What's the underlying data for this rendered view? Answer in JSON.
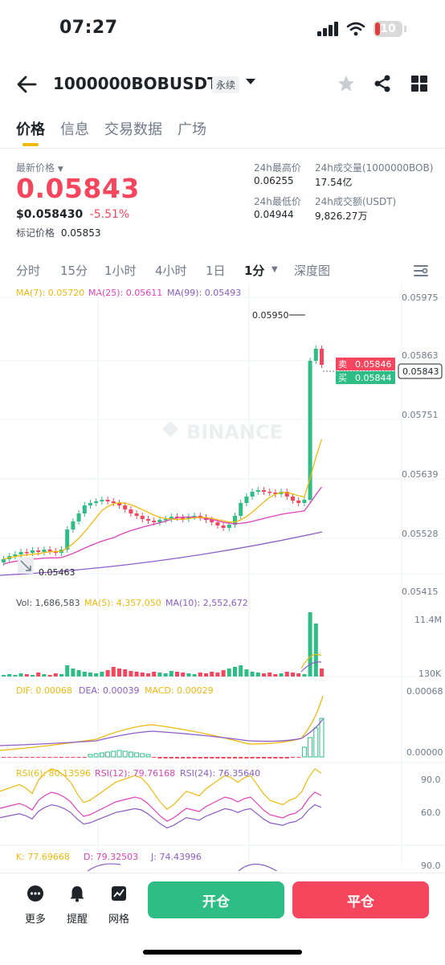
{
  "status": {
    "time": "07:27",
    "battery": "10"
  },
  "header": {
    "symbol": "1000000BOBUSDT",
    "badge": "永续"
  },
  "tabs": [
    "价格",
    "信息",
    "交易数据",
    "广场"
  ],
  "price": {
    "latest_label": "最新价格",
    "last": "0.05843",
    "usd": "$0.058430",
    "change": "-5.51%",
    "mark_label": "标记价格",
    "mark": "0.05853"
  },
  "stats": {
    "high_label": "24h最高价",
    "high": "0.06255",
    "low_label": "24h最低价",
    "low": "0.04944",
    "vol_label": "24h成交量(1000000BOB)",
    "vol": "17.54亿",
    "amount_label": "24h成交额(USDT)",
    "amount": "9,826.27万"
  },
  "intervals": [
    "分时",
    "15分",
    "1小时",
    "4小时",
    "1日",
    "1分",
    "深度图"
  ],
  "chart": {
    "ma7": "MA(7): 0.05720",
    "ma25": "MA(25): 0.05611",
    "ma99": "MA(99): 0.05493",
    "y_ticks": [
      "0.05975",
      "0.05863",
      "0.05751",
      "0.05639",
      "0.05528",
      "0.05415"
    ],
    "high_mark": "0.05950",
    "low_mark": "0.05463",
    "sell_label": "卖",
    "sell": "0.05846",
    "buy_label": "买",
    "buy": "0.05844",
    "current": "0.05843",
    "watermark": "BINANCE",
    "colors": {
      "up": "#2ebd85",
      "down": "#f6465d",
      "ma7": "#f0b90b",
      "ma25": "#e040b8",
      "ma99": "#8c5cc8"
    }
  },
  "volume": {
    "vol": "Vol: 1,686,583",
    "ma5": "MA(5): 4,357,050",
    "ma10": "MA(10): 2,552,672",
    "top": "11.4M",
    "bottom": "130K"
  },
  "macd": {
    "dif": "DIF: 0.00068",
    "dea": "DEA: 0.00039",
    "macd": "MACD: 0.00029",
    "top": "0.00068",
    "bottom": "0.00000"
  },
  "rsi": {
    "r6": "RSI(6): 80.13596",
    "r12": "RSI(12): 79.76168",
    "r24": "RSI(24): 76.35640",
    "top": "90.0",
    "mid": "60.0"
  },
  "kdj": {
    "k": "K: 77.69668",
    "d": "D: 79.32503",
    "j": "J: 74.43996",
    "top": "90.0"
  },
  "bottom_nav": {
    "more": "更多",
    "alert": "提醒",
    "grid": "网格",
    "open": "开仓",
    "close": "平仓"
  }
}
